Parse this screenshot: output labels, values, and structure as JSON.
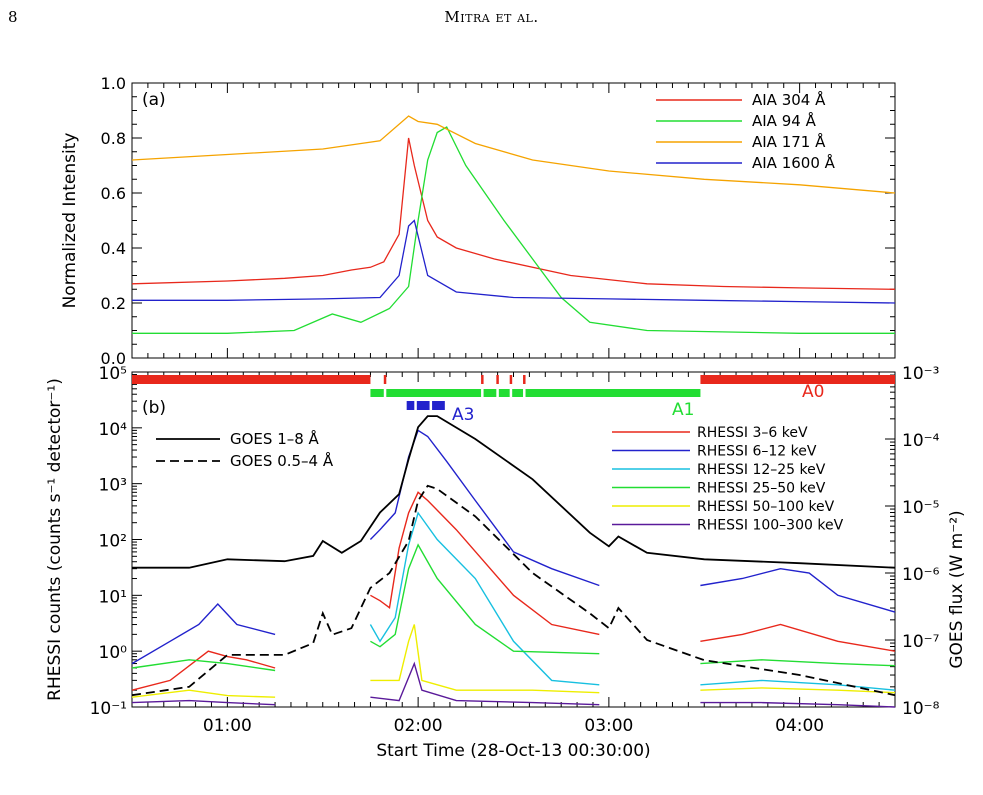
{
  "header": {
    "page_number": "8",
    "running_head": "Mitra et al."
  },
  "chart_data": [
    {
      "panel_label": "(a)",
      "type": "line",
      "ylabel": "Normalized Intensity",
      "ylim": [
        0.0,
        1.0
      ],
      "y_ticks": [
        "0.0",
        "0.2",
        "0.4",
        "0.6",
        "0.8",
        "1.0"
      ],
      "x_range_hours": [
        0.5,
        4.5
      ],
      "grid": false,
      "legend_position": "top-right",
      "series": [
        {
          "name": "AIA 304 Å",
          "color": "#e8281c",
          "x": [
            0.5,
            1.0,
            1.3,
            1.5,
            1.65,
            1.75,
            1.82,
            1.9,
            1.95,
            1.98,
            2.05,
            2.1,
            2.2,
            2.4,
            2.8,
            3.2,
            3.6,
            4.0,
            4.5
          ],
          "y": [
            0.27,
            0.28,
            0.29,
            0.3,
            0.32,
            0.33,
            0.35,
            0.45,
            0.8,
            0.7,
            0.5,
            0.44,
            0.4,
            0.36,
            0.3,
            0.27,
            0.26,
            0.255,
            0.25
          ]
        },
        {
          "name": "AIA 94 Å",
          "color": "#22dd33",
          "x": [
            0.5,
            1.0,
            1.35,
            1.55,
            1.7,
            1.85,
            1.95,
            2.0,
            2.05,
            2.1,
            2.15,
            2.25,
            2.45,
            2.6,
            2.75,
            2.9,
            3.2,
            4.0,
            4.5
          ],
          "y": [
            0.09,
            0.09,
            0.1,
            0.16,
            0.13,
            0.18,
            0.26,
            0.5,
            0.72,
            0.82,
            0.84,
            0.7,
            0.5,
            0.36,
            0.22,
            0.13,
            0.1,
            0.09,
            0.09
          ]
        },
        {
          "name": "AIA 171 Å",
          "color": "#f5a300",
          "x": [
            0.5,
            1.0,
            1.5,
            1.8,
            1.95,
            2.0,
            2.1,
            2.3,
            2.6,
            3.0,
            3.5,
            4.0,
            4.5
          ],
          "y": [
            0.72,
            0.74,
            0.76,
            0.79,
            0.88,
            0.86,
            0.85,
            0.78,
            0.72,
            0.68,
            0.65,
            0.63,
            0.6
          ]
        },
        {
          "name": "AIA 1600 Å",
          "color": "#2222cc",
          "x": [
            0.5,
            1.0,
            1.5,
            1.8,
            1.9,
            1.95,
            1.98,
            2.05,
            2.2,
            2.5,
            3.0,
            3.5,
            4.0,
            4.5
          ],
          "y": [
            0.21,
            0.21,
            0.215,
            0.22,
            0.3,
            0.48,
            0.5,
            0.3,
            0.24,
            0.22,
            0.215,
            0.21,
            0.205,
            0.2
          ]
        }
      ]
    },
    {
      "panel_label": "(b)",
      "type": "line",
      "ylabel": "RHESSI counts (counts s⁻¹ detector⁻¹)",
      "y2label": "GOES flux (W m⁻²)",
      "xlabel": "Start Time (28-Oct-13 00:30:00)",
      "x_tick_labels": [
        "01:00",
        "02:00",
        "03:00",
        "04:00"
      ],
      "x_tick_hours": [
        1,
        2,
        3,
        4
      ],
      "y_scale": "log",
      "ylim": [
        0.1,
        100000
      ],
      "y_ticks": [
        "10⁻¹",
        "10⁰",
        "10¹",
        "10²",
        "10³",
        "10⁴",
        "10⁵"
      ],
      "y2_scale": "log",
      "y2lim": [
        1e-08,
        0.001
      ],
      "y2_ticks": [
        "10⁻⁸",
        "10⁻⁷",
        "10⁻⁶",
        "10⁻⁵",
        "10⁻⁴",
        "10⁻³"
      ],
      "attenuator_labels": [
        {
          "text": "A0",
          "color": "#e8281c"
        },
        {
          "text": "A1",
          "color": "#22dd33"
        },
        {
          "text": "A3",
          "color": "#2222cc"
        }
      ],
      "attenuator_bars": [
        {
          "state": "A0",
          "color": "#e8281c",
          "row": 0,
          "x0": 0.5,
          "x1": 1.75
        },
        {
          "state": "A0",
          "color": "#e8281c",
          "row": 0,
          "x0": 3.48,
          "x1": 4.5
        },
        {
          "state": "A1",
          "color": "#22dd33",
          "row": 1,
          "x0": 1.75,
          "x1": 3.48
        },
        {
          "state": "A3",
          "color": "#2222cc",
          "row": 2,
          "x0": 1.94,
          "x1": 2.14
        }
      ],
      "goes_series": [
        {
          "name": "GOES 1–8 Å",
          "style": "solid",
          "color": "#000000",
          "x": [
            0.5,
            0.8,
            1.0,
            1.3,
            1.45,
            1.5,
            1.6,
            1.7,
            1.8,
            1.9,
            1.95,
            2.0,
            2.05,
            2.1,
            2.3,
            2.6,
            2.9,
            3.0,
            3.05,
            3.2,
            3.5,
            4.0,
            4.5
          ],
          "y": [
            1.2e-06,
            1.2e-06,
            1.6e-06,
            1.5e-06,
            1.8e-06,
            3e-06,
            2e-06,
            3e-06,
            8e-06,
            1.5e-05,
            5e-05,
            0.00015,
            0.00022,
            0.00022,
            0.0001,
            2.5e-05,
            4e-06,
            2.5e-06,
            3.5e-06,
            2e-06,
            1.6e-06,
            1.4e-06,
            1.2e-06
          ]
        },
        {
          "name": "GOES 0.5–4 Å",
          "style": "dashed",
          "color": "#000000",
          "x": [
            0.5,
            0.8,
            1.0,
            1.3,
            1.45,
            1.5,
            1.55,
            1.65,
            1.75,
            1.85,
            1.95,
            2.0,
            2.05,
            2.1,
            2.3,
            2.6,
            2.9,
            3.0,
            3.05,
            3.2,
            3.5,
            4.0,
            4.5
          ],
          "y": [
            1.5e-08,
            2e-08,
            6e-08,
            6e-08,
            9e-08,
            2.5e-07,
            1.2e-07,
            1.5e-07,
            6e-07,
            1e-06,
            3e-06,
            1.2e-05,
            2e-05,
            1.8e-05,
            7e-06,
            1e-06,
            2.5e-07,
            1.5e-07,
            3e-07,
            1e-07,
            5e-08,
            3e-08,
            1.5e-08
          ]
        }
      ],
      "rhessi_series": [
        {
          "name": "RHESSI 3–6 keV",
          "color": "#e8281c",
          "segments": [
            {
              "x": [
                0.5,
                0.7,
                0.9,
                1.0,
                1.1,
                1.25
              ],
              "y": [
                0.2,
                0.3,
                1.0,
                0.8,
                0.7,
                0.5
              ]
            },
            {
              "x": [
                1.75,
                1.8,
                1.85,
                1.9,
                1.95,
                2.0,
                2.05,
                2.2,
                2.5,
                2.7,
                2.95
              ],
              "y": [
                10,
                8,
                6,
                70,
                300,
                700,
                500,
                150,
                10,
                3,
                2
              ]
            },
            {
              "x": [
                3.48,
                3.7,
                3.9,
                4.2,
                4.5
              ],
              "y": [
                1.5,
                2.0,
                3.0,
                1.5,
                1.0
              ]
            }
          ]
        },
        {
          "name": "RHESSI 6–12 keV",
          "color": "#2222cc",
          "segments": [
            {
              "x": [
                0.5,
                0.7,
                0.85,
                0.95,
                1.05,
                1.25
              ],
              "y": [
                0.6,
                1.5,
                3.0,
                7.0,
                3.0,
                2.0
              ]
            },
            {
              "x": [
                1.75,
                1.8,
                1.88,
                1.95,
                2.0,
                2.05,
                2.15,
                2.3,
                2.5,
                2.7,
                2.95
              ],
              "y": [
                100,
                150,
                300,
                3000,
                9000,
                7000,
                2500,
                500,
                60,
                30,
                15
              ]
            },
            {
              "x": [
                3.48,
                3.7,
                3.9,
                4.05,
                4.2,
                4.5
              ],
              "y": [
                15,
                20,
                30,
                25,
                10,
                5
              ]
            }
          ]
        },
        {
          "name": "RHESSI 12–25 keV",
          "color": "#18c0e0",
          "segments": [
            {
              "x": [
                1.75,
                1.8,
                1.88,
                1.95,
                2.0,
                2.1,
                2.3,
                2.5,
                2.7,
                2.95
              ],
              "y": [
                3,
                1.5,
                4,
                80,
                300,
                100,
                20,
                1.5,
                0.3,
                0.25
              ]
            },
            {
              "x": [
                3.48,
                3.8,
                4.2,
                4.5
              ],
              "y": [
                0.25,
                0.3,
                0.25,
                0.2
              ]
            }
          ]
        },
        {
          "name": "RHESSI 25–50 keV",
          "color": "#22dd33",
          "segments": [
            {
              "x": [
                0.5,
                0.8,
                1.0,
                1.25
              ],
              "y": [
                0.5,
                0.7,
                0.6,
                0.45
              ]
            },
            {
              "x": [
                1.75,
                1.8,
                1.88,
                1.95,
                2.0,
                2.1,
                2.3,
                2.5,
                2.95
              ],
              "y": [
                1.5,
                1.2,
                2.0,
                30,
                80,
                20,
                3,
                1.0,
                0.9
              ]
            },
            {
              "x": [
                3.48,
                3.8,
                4.2,
                4.5
              ],
              "y": [
                0.6,
                0.7,
                0.6,
                0.55
              ]
            }
          ]
        },
        {
          "name": "RHESSI 50–100 keV",
          "color": "#eeee00",
          "segments": [
            {
              "x": [
                0.5,
                0.8,
                1.0,
                1.25
              ],
              "y": [
                0.15,
                0.2,
                0.16,
                0.15
              ]
            },
            {
              "x": [
                1.75,
                1.9,
                1.95,
                1.98,
                2.02,
                2.2,
                2.6,
                2.95
              ],
              "y": [
                0.3,
                0.3,
                1.5,
                3.0,
                0.3,
                0.2,
                0.2,
                0.18
              ]
            },
            {
              "x": [
                3.48,
                3.8,
                4.2,
                4.5
              ],
              "y": [
                0.2,
                0.22,
                0.2,
                0.18
              ]
            }
          ]
        },
        {
          "name": "RHESSI 100–300 keV",
          "color": "#5a1a9a",
          "segments": [
            {
              "x": [
                0.5,
                0.8,
                1.0,
                1.25
              ],
              "y": [
                0.12,
                0.13,
                0.12,
                0.11
              ]
            },
            {
              "x": [
                1.75,
                1.9,
                1.98,
                2.02,
                2.2,
                2.6,
                2.95
              ],
              "y": [
                0.15,
                0.13,
                0.6,
                0.2,
                0.13,
                0.12,
                0.11
              ]
            },
            {
              "x": [
                3.48,
                3.8,
                4.2,
                4.5
              ],
              "y": [
                0.12,
                0.12,
                0.11,
                0.1
              ]
            }
          ]
        }
      ]
    }
  ]
}
